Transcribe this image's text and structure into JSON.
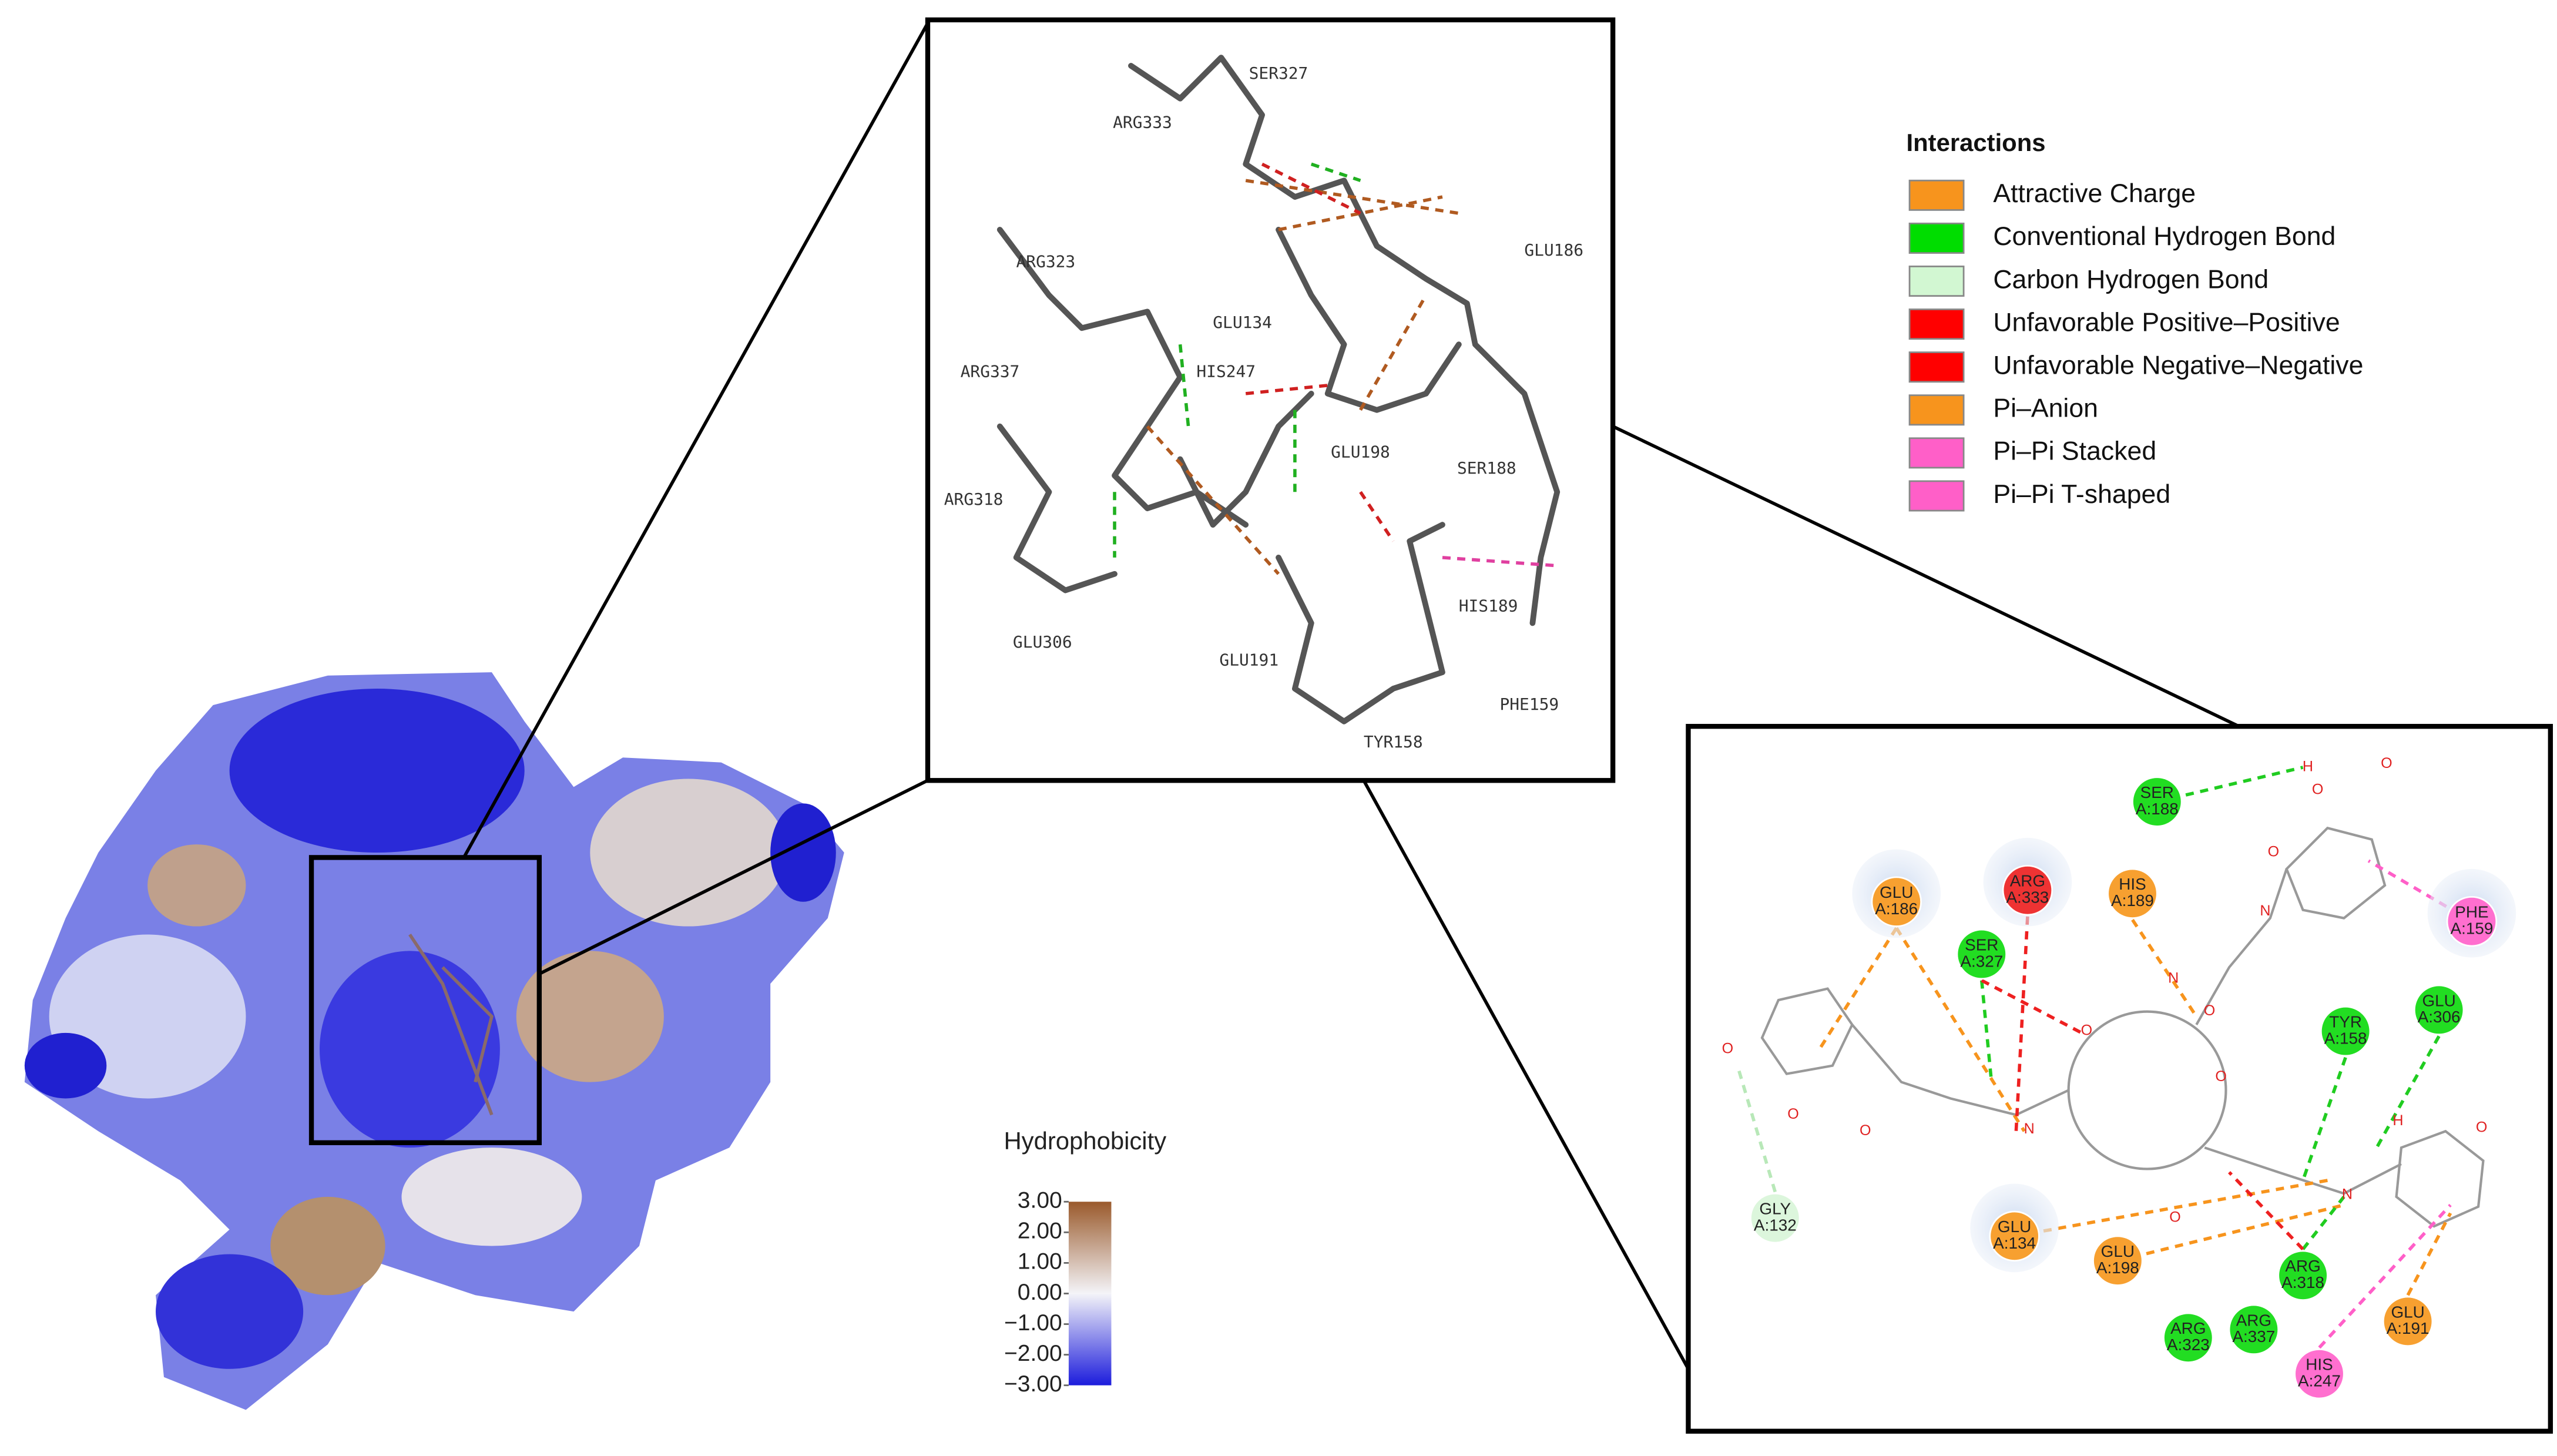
{
  "colorbar": {
    "title": "Hydrophobicity",
    "ticks": [
      {
        "value": 3,
        "label": "3.00"
      },
      {
        "value": 2,
        "label": "2.00"
      },
      {
        "value": 1,
        "label": "1.00"
      },
      {
        "value": 0,
        "label": "0.00"
      },
      {
        "value": -1,
        "label": "−1.00"
      },
      {
        "value": -2,
        "label": "−2.00"
      },
      {
        "value": -3,
        "label": "−3.00"
      }
    ],
    "colors": [
      "#9a5a2c",
      "#f4f4f8",
      "#1c1cdc"
    ]
  },
  "residues_3d": [
    "SER327",
    "ARG333",
    "ARG323",
    "GLU186",
    "GLU134",
    "ARG337",
    "HIS247",
    "GLU198",
    "SER188",
    "ARG318",
    "GLU306",
    "GLU191",
    "HIS189",
    "PHE159",
    "TYR158"
  ],
  "legend": {
    "title": "Interactions",
    "items": [
      {
        "name": "Attractive Charge",
        "color": "#f7941d"
      },
      {
        "name": "Conventional Hydrogen Bond",
        "color": "#00dd00"
      },
      {
        "name": "Carbon Hydrogen Bond",
        "color": "#d2f7d2"
      },
      {
        "name": "Unfavorable Positive–Positive",
        "color": "#ff0000"
      },
      {
        "name": "Unfavorable Negative–Negative",
        "color": "#ff0000"
      },
      {
        "name": "Pi–Anion",
        "color": "#f7941d"
      },
      {
        "name": "Pi–Pi Stacked",
        "color": "#ff5fc8"
      },
      {
        "name": "Pi–Pi T-shaped",
        "color": "#ff5fc8"
      }
    ]
  },
  "diagram_2d": {
    "nodes": [
      {
        "name": "SER",
        "chain": "A:188",
        "color": "#22dd22"
      },
      {
        "name": "ARG",
        "chain": "A:333",
        "color": "#ee3333"
      },
      {
        "name": "HIS",
        "chain": "A:189",
        "color": "#f7a030"
      },
      {
        "name": "GLU",
        "chain": "A:186",
        "color": "#f7a030"
      },
      {
        "name": "SER",
        "chain": "A:327",
        "color": "#22dd22"
      },
      {
        "name": "PHE",
        "chain": "A:159",
        "color": "#ff6fcf"
      },
      {
        "name": "TYR",
        "chain": "A:158",
        "color": "#22dd22"
      },
      {
        "name": "GLU",
        "chain": "A:306",
        "color": "#22dd22"
      },
      {
        "name": "GLY",
        "chain": "A:132",
        "color": "#dcf6dc"
      },
      {
        "name": "GLU",
        "chain": "A:134",
        "color": "#f7a030"
      },
      {
        "name": "GLU",
        "chain": "A:198",
        "color": "#f7a030"
      },
      {
        "name": "ARG",
        "chain": "A:318",
        "color": "#22dd22"
      },
      {
        "name": "ARG",
        "chain": "A:337",
        "color": "#22dd22"
      },
      {
        "name": "ARG",
        "chain": "A:323",
        "color": "#22dd22"
      },
      {
        "name": "GLU",
        "chain": "A:191",
        "color": "#f7a030"
      },
      {
        "name": "HIS",
        "chain": "A:247",
        "color": "#ff6fcf"
      }
    ],
    "atoms": [
      "H",
      "O",
      "O",
      "O",
      "N",
      "O",
      "O",
      "O",
      "N",
      "O",
      "N",
      "O",
      "O",
      "O",
      "N",
      "H",
      "O"
    ]
  }
}
